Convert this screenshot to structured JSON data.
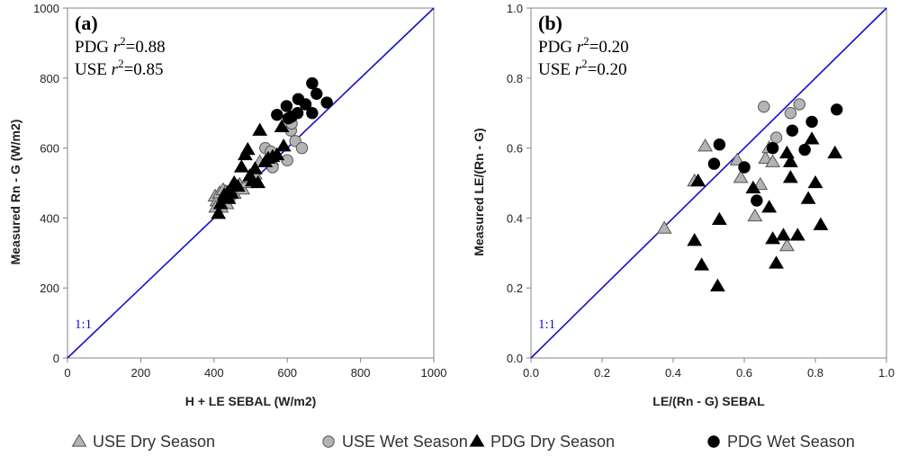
{
  "chart_data": [
    {
      "type": "scatter",
      "panel_label": "(a)",
      "stats": [
        {
          "group": "PDG",
          "r2_prefix": "r",
          "r2_sup": "2",
          "r2_value": "=0.88"
        },
        {
          "group": "USE",
          "r2_prefix": "r",
          "r2_sup": "2",
          "r2_value": "=0.85"
        }
      ],
      "xlabel": "H + LE SEBAL (W/m2)",
      "ylabel": "Measured Rn - G (W/m2)",
      "xlim": [
        0,
        1000
      ],
      "ylim": [
        0,
        1000
      ],
      "xticks": [
        "0",
        "200",
        "400",
        "600",
        "800",
        "1000"
      ],
      "yticks": [
        "0",
        "200",
        "400",
        "600",
        "800",
        "1000"
      ],
      "one_to_one_label": "1:1",
      "grid": false,
      "series": [
        {
          "name": "USE Dry Season",
          "marker": "triangle",
          "fill": "#b4b4b4",
          "points": [
            [
              403,
              462
            ],
            [
              408,
              448
            ],
            [
              415,
              471
            ],
            [
              425,
              480
            ],
            [
              432,
              475
            ],
            [
              445,
              478
            ],
            [
              430,
              455
            ],
            [
              435,
              440
            ],
            [
              420,
              430
            ],
            [
              440,
              465
            ],
            [
              455,
              470
            ],
            [
              470,
              495
            ],
            [
              478,
              482
            ],
            [
              488,
              500
            ],
            [
              500,
              515
            ],
            [
              512,
              525
            ],
            [
              525,
              560
            ],
            [
              548,
              570
            ],
            [
              557,
              565
            ],
            [
              405,
              430
            ],
            [
              428,
              458
            ]
          ]
        },
        {
          "name": "USE Wet Season",
          "marker": "circle",
          "fill": "#b4b4b4",
          "points": [
            [
              540,
              600
            ],
            [
              555,
              590
            ],
            [
              560,
              545
            ],
            [
              610,
              650
            ],
            [
              600,
              565
            ],
            [
              622,
              620
            ],
            [
              640,
              600
            ],
            [
              612,
              670
            ]
          ]
        },
        {
          "name": "PDG Dry Season",
          "marker": "triangle",
          "fill": "#000000",
          "points": [
            [
              412,
              412
            ],
            [
              418,
              440
            ],
            [
              428,
              465
            ],
            [
              440,
              455
            ],
            [
              448,
              470
            ],
            [
              455,
              500
            ],
            [
              465,
              490
            ],
            [
              475,
              545
            ],
            [
              485,
              580
            ],
            [
              492,
              595
            ],
            [
              498,
              520
            ],
            [
              505,
              505
            ],
            [
              512,
              540
            ],
            [
              525,
              650
            ],
            [
              540,
              560
            ],
            [
              548,
              570
            ],
            [
              560,
              575
            ],
            [
              572,
              580
            ],
            [
              585,
              660
            ],
            [
              590,
              605
            ],
            [
              520,
              500
            ],
            [
              437,
              472
            ]
          ]
        },
        {
          "name": "PDG Wet Season",
          "marker": "circle",
          "fill": "#000000",
          "points": [
            [
              572,
              695
            ],
            [
              598,
              720
            ],
            [
              612,
              690
            ],
            [
              628,
              700
            ],
            [
              630,
              740
            ],
            [
              650,
              725
            ],
            [
              668,
              785
            ],
            [
              668,
              700
            ],
            [
              680,
              755
            ],
            [
              708,
              730
            ],
            [
              603,
              685
            ]
          ]
        }
      ]
    },
    {
      "type": "scatter",
      "panel_label": "(b)",
      "stats": [
        {
          "group": "PDG",
          "r2_prefix": "r",
          "r2_sup": "2",
          "r2_value": "=0.20"
        },
        {
          "group": "USE",
          "r2_prefix": "r",
          "r2_sup": "2",
          "r2_value": "=0.20"
        }
      ],
      "xlabel": "LE/(Rn - G) SEBAL",
      "ylabel": "Measured LE/(Rn - G)",
      "xlim": [
        0,
        1
      ],
      "ylim": [
        0,
        1
      ],
      "xticks": [
        "0.0",
        "0.2",
        "0.4",
        "0.6",
        "0.8",
        "1.0"
      ],
      "yticks": [
        "0.0",
        "0.2",
        "0.4",
        "0.6",
        "0.8",
        "1.0"
      ],
      "one_to_one_label": "1:1",
      "grid": false,
      "series": [
        {
          "name": "USE Dry Season",
          "marker": "triangle",
          "fill": "#b4b4b4",
          "points": [
            [
              0.375,
              0.37
            ],
            [
              0.46,
              0.505
            ],
            [
              0.49,
              0.605
            ],
            [
              0.58,
              0.565
            ],
            [
              0.59,
              0.515
            ],
            [
              0.63,
              0.405
            ],
            [
              0.645,
              0.495
            ],
            [
              0.66,
              0.57
            ],
            [
              0.67,
              0.6
            ],
            [
              0.68,
              0.56
            ],
            [
              0.72,
              0.32
            ]
          ]
        },
        {
          "name": "USE Wet Season",
          "marker": "circle",
          "fill": "#b4b4b4",
          "points": [
            [
              0.655,
              0.718
            ],
            [
              0.69,
              0.63
            ],
            [
              0.73,
              0.7
            ],
            [
              0.755,
              0.725
            ]
          ]
        },
        {
          "name": "PDG Dry Season",
          "marker": "triangle",
          "fill": "#000000",
          "points": [
            [
              0.46,
              0.335
            ],
            [
              0.47,
              0.505
            ],
            [
              0.48,
              0.265
            ],
            [
              0.525,
              0.205
            ],
            [
              0.53,
              0.395
            ],
            [
              0.625,
              0.485
            ],
            [
              0.67,
              0.43
            ],
            [
              0.68,
              0.34
            ],
            [
              0.69,
              0.27
            ],
            [
              0.71,
              0.35
            ],
            [
              0.72,
              0.585
            ],
            [
              0.73,
              0.515
            ],
            [
              0.73,
              0.56
            ],
            [
              0.75,
              0.35
            ],
            [
              0.78,
              0.455
            ],
            [
              0.79,
              0.625
            ],
            [
              0.8,
              0.5
            ],
            [
              0.815,
              0.38
            ],
            [
              0.855,
              0.585
            ]
          ]
        },
        {
          "name": "PDG Wet Season",
          "marker": "circle",
          "fill": "#000000",
          "points": [
            [
              0.515,
              0.555
            ],
            [
              0.53,
              0.61
            ],
            [
              0.6,
              0.545
            ],
            [
              0.635,
              0.45
            ],
            [
              0.68,
              0.6
            ],
            [
              0.735,
              0.65
            ],
            [
              0.77,
              0.595
            ],
            [
              0.79,
              0.675
            ],
            [
              0.86,
              0.71
            ]
          ]
        }
      ]
    }
  ],
  "legend": [
    {
      "label": "USE Dry Season",
      "marker": "triangle",
      "fill": "#b4b4b4"
    },
    {
      "label": "USE Wet Season",
      "marker": "circle",
      "fill": "#b4b4b4"
    },
    {
      "label": "PDG Dry Season",
      "marker": "triangle",
      "fill": "#000000"
    },
    {
      "label": "PDG Wet Season",
      "marker": "circle",
      "fill": "#000000"
    }
  ],
  "colors": {
    "one_to_one_line": "#1010d0",
    "axis": "#868686",
    "marker_stroke": "#555555"
  }
}
